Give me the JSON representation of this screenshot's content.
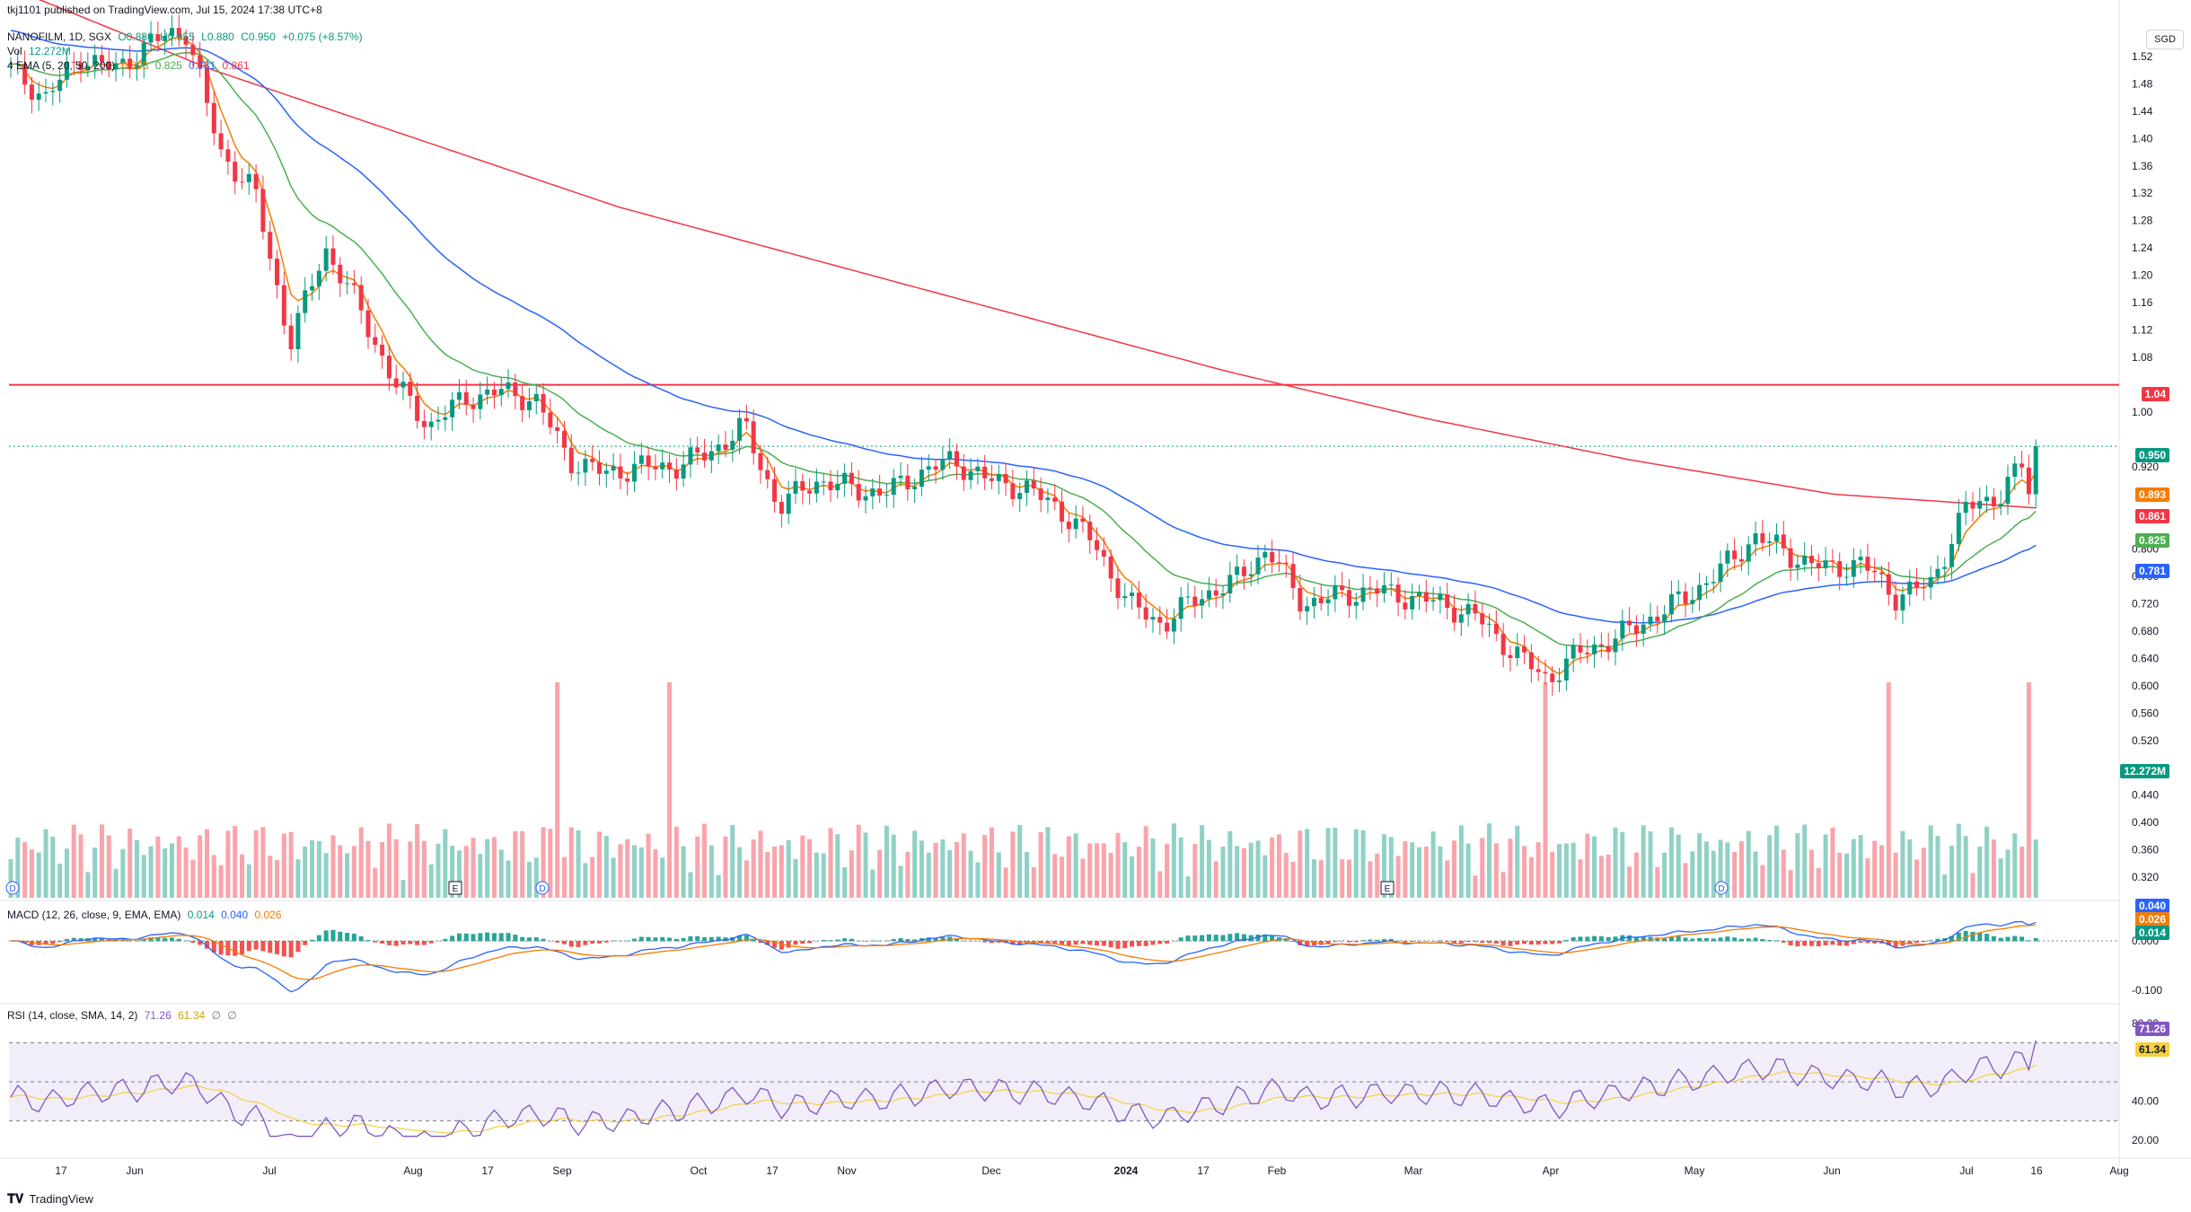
{
  "publisher": "tkj1101 published on TradingView.com, Jul 15, 2024 17:38 UTC+8",
  "currency_button": "SGD",
  "symbol_line": {
    "symbol": "NANOFILM, 1D, SGX",
    "o": "O0.880",
    "h": "H0.955",
    "l": "L0.880",
    "c": "C0.950",
    "change": "+0.075 (+8.57%)"
  },
  "volume_line": {
    "label": "Vol",
    "value": "12.272M"
  },
  "ema_line": {
    "label": "4 EMA (5, 20, 50, 200)",
    "v1": "0.893",
    "v2": "0.825",
    "v3": "0.781",
    "v4": "0.861"
  },
  "macd_line": {
    "label": "MACD (12, 26, close, 9, EMA, EMA)",
    "hist": "0.014",
    "macd": "0.040",
    "signal": "0.026"
  },
  "rsi_line": {
    "label": "RSI (14, close, SMA, 14, 2)",
    "rsi": "71.26",
    "ma": "61.34",
    "extra1": "∅",
    "extra2": "∅"
  },
  "price_labels": [
    "1.52",
    "1.48",
    "1.44",
    "1.40",
    "1.36",
    "1.32",
    "1.28",
    "1.24",
    "1.20",
    "1.16",
    "1.12",
    "1.08",
    "1.00",
    "0.920",
    "0.800",
    "0.760",
    "0.720",
    "0.680",
    "0.640",
    "0.600",
    "0.560",
    "0.520",
    "0.440",
    "0.400",
    "0.360",
    "0.320"
  ],
  "macd_labels": [
    "0.000",
    "-0.100"
  ],
  "rsi_labels": [
    "80.00",
    "40.00",
    "20.00"
  ],
  "price_tags": {
    "resistance": "1.04",
    "last": "0.950",
    "ema5": "0.893",
    "ema200": "0.861",
    "ema20": "0.825",
    "ema50": "0.781",
    "volume": "12.272M",
    "macd": "0.040",
    "signal": "0.026",
    "hist": "0.014",
    "rsi": "71.26",
    "rsi_ma": "61.34"
  },
  "time_labels": [
    "17",
    "Jun",
    "Jul",
    "Aug",
    "17",
    "Sep",
    "Oct",
    "17",
    "Nov",
    "Dec",
    "2024",
    "17",
    "Feb",
    "Mar",
    "Apr",
    "May",
    "Jun",
    "Jul",
    "16",
    "Aug"
  ],
  "event_markers": [
    "D",
    "E",
    "D",
    "E",
    "D"
  ],
  "footer": "TradingView",
  "colors": {
    "up": "#089981",
    "down": "#f23645",
    "ema5": "#f57c00",
    "ema20": "#4caf50",
    "ema50": "#2962ff",
    "ema200": "#f23645",
    "rsi": "#7e57c2"
  },
  "chart_data": {
    "type": "candlestick",
    "title": "NANOFILM, 1D, SGX",
    "resistance_level": 1.04,
    "ylim": [
      0.29,
      1.55
    ],
    "closes_weekly": [
      1.5,
      1.46,
      1.52,
      1.5,
      1.54,
      1.56,
      1.38,
      1.32,
      1.1,
      1.24,
      1.15,
      1.04,
      0.98,
      1.02,
      1.03,
      1.02,
      0.93,
      0.91,
      0.92,
      0.92,
      0.94,
      0.98,
      0.86,
      0.9,
      0.89,
      0.88,
      0.91,
      0.93,
      0.9,
      0.89,
      0.86,
      0.81,
      0.72,
      0.69,
      0.73,
      0.75,
      0.8,
      0.72,
      0.73,
      0.74,
      0.73,
      0.72,
      0.7,
      0.65,
      0.61,
      0.65,
      0.67,
      0.7,
      0.73,
      0.77,
      0.82,
      0.79,
      0.77,
      0.78,
      0.73,
      0.75,
      0.86,
      0.88,
      0.95
    ],
    "ema200": [
      1.62,
      1.5,
      1.4,
      1.3,
      1.22,
      1.14,
      1.06,
      0.99,
      0.93,
      0.88,
      0.86
    ],
    "rsi_last": 71.26
  }
}
